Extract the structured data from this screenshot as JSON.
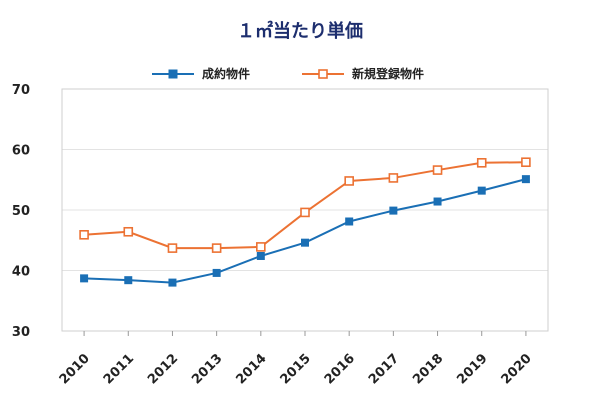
{
  "chart_data": {
    "type": "line",
    "title": "１㎡当たり単価",
    "xlabel": "",
    "ylabel": "",
    "categories": [
      "2010",
      "2011",
      "2012",
      "2013",
      "2014",
      "2015",
      "2016",
      "2017",
      "2018",
      "2019",
      "2020"
    ],
    "series": [
      {
        "name": "成約物件",
        "color": "#1a6fb5",
        "marker": "filled-square",
        "values": [
          38.7,
          38.4,
          38.0,
          39.6,
          42.4,
          44.6,
          48.1,
          49.9,
          51.4,
          53.2,
          55.1
        ]
      },
      {
        "name": "新規登録物件",
        "color": "#ec7233",
        "marker": "hollow-square",
        "values": [
          45.9,
          46.4,
          43.7,
          43.7,
          43.9,
          49.6,
          54.8,
          55.3,
          56.6,
          57.8,
          57.9
        ]
      }
    ],
    "ylim": [
      30,
      70
    ],
    "yticks": [
      30,
      40,
      50,
      60,
      70
    ],
    "grid": true,
    "legend_position": "top-center"
  }
}
